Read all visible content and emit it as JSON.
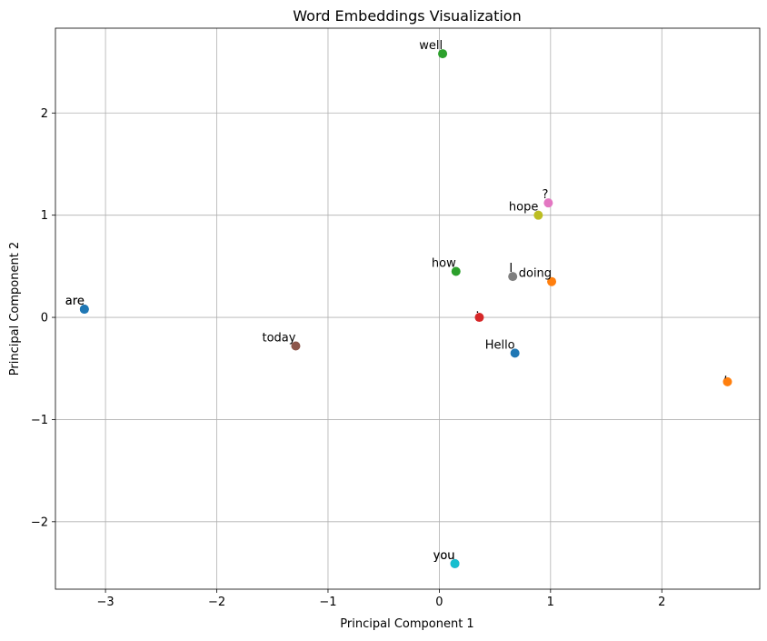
{
  "chart_data": {
    "type": "scatter",
    "title": "Word Embeddings Visualization",
    "xlabel": "Principal Component 1",
    "ylabel": "Principal Component 2",
    "xlim": [
      -3.45,
      2.88
    ],
    "ylim": [
      -2.66,
      2.83
    ],
    "grid": true,
    "x_ticks": [
      -3,
      -2,
      -1,
      0,
      1,
      2
    ],
    "y_ticks": [
      -2,
      -1,
      0,
      1,
      2
    ],
    "x_tick_labels": [
      "−3",
      "−2",
      "−1",
      "0",
      "1",
      "2"
    ],
    "y_tick_labels": [
      "−2",
      "−1",
      "0",
      "1",
      "2"
    ],
    "points": [
      {
        "label": "Hello",
        "x": 0.68,
        "y": -0.35,
        "color": "#1f77b4"
      },
      {
        "label": ",",
        "x": 2.59,
        "y": -0.63,
        "color": "#ff7f0e"
      },
      {
        "label": "how",
        "x": 0.15,
        "y": 0.45,
        "color": "#2ca02c"
      },
      {
        "label": ".",
        "x": 0.36,
        "y": 0.0,
        "color": "#d62728"
      },
      {
        "label": "you",
        "x": 0.14,
        "y": -2.41,
        "color": "#9467bd"
      },
      {
        "label": "today",
        "x": -1.29,
        "y": -0.28,
        "color": "#8c564b"
      },
      {
        "label": "?",
        "x": 0.98,
        "y": 1.12,
        "color": "#e377c2"
      },
      {
        "label": "I",
        "x": 0.66,
        "y": 0.4,
        "color": "#7f7f7f"
      },
      {
        "label": "hope",
        "x": 0.89,
        "y": 1.0,
        "color": "#bcbd22"
      },
      {
        "label": "you",
        "x": 0.14,
        "y": -2.41,
        "color": "#17becf"
      },
      {
        "label": "are",
        "x": -3.19,
        "y": 0.08,
        "color": "#1f77b4"
      },
      {
        "label": "doing",
        "x": 1.01,
        "y": 0.35,
        "color": "#ff7f0e"
      },
      {
        "label": "well",
        "x": 0.03,
        "y": 2.58,
        "color": "#2ca02c"
      },
      {
        "label": "are",
        "x": -3.19,
        "y": 0.08,
        "color": "#1f77b4"
      }
    ]
  }
}
